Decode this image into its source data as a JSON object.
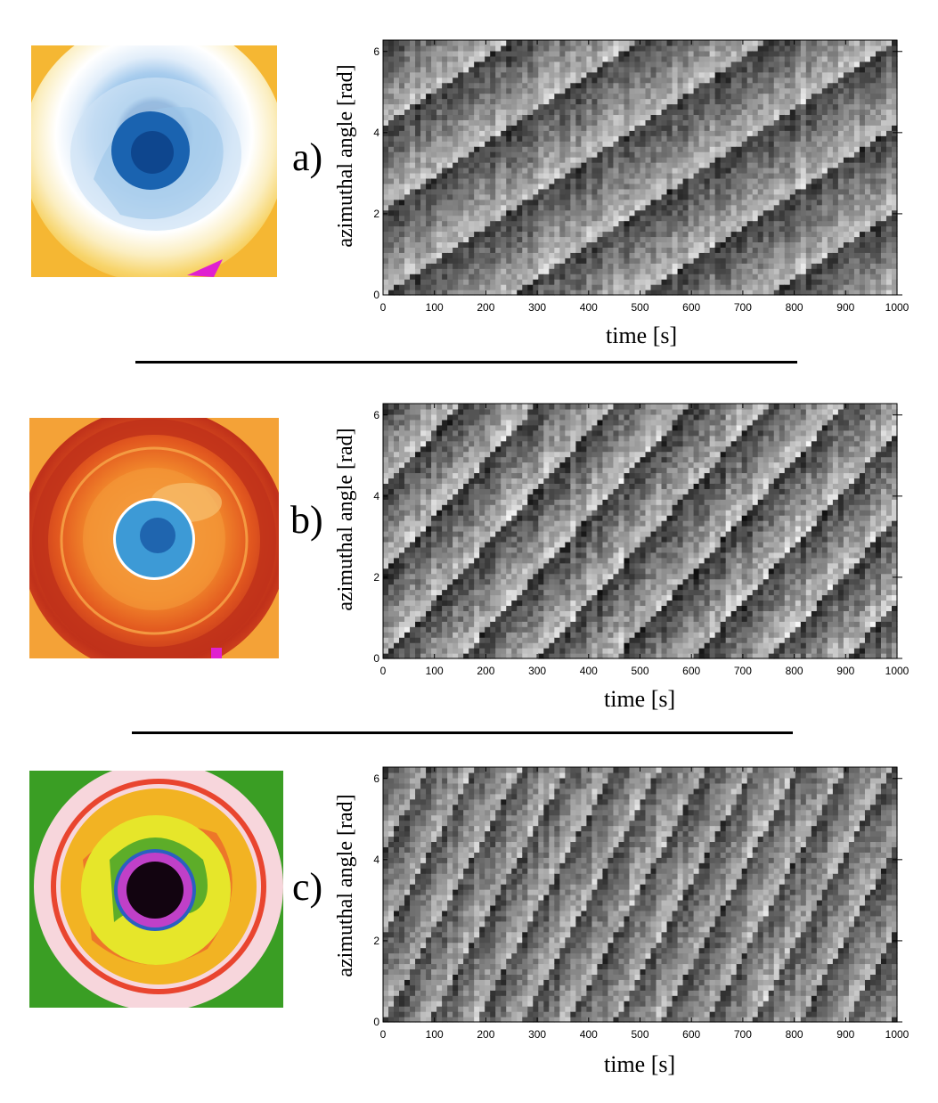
{
  "figure": {
    "separators": 2
  },
  "chart_data": [
    {
      "type": "heatmap",
      "panel_label": "a)",
      "xlabel": "time [s]",
      "ylabel": "azimuthal angle [rad]",
      "xlim": [
        0,
        1000
      ],
      "ylim": [
        0,
        6.28
      ],
      "x_ticks": [
        "0",
        "100",
        "200",
        "300",
        "400",
        "500",
        "600",
        "700",
        "800",
        "900",
        "1000"
      ],
      "y_ticks": [
        "0",
        "2",
        "4",
        "6"
      ],
      "colormap": "grayscale",
      "pattern": {
        "waves": 3,
        "period_s": 250,
        "contrast": 0.55,
        "noise": 0.22,
        "seed": 11
      },
      "thermal_image": {
        "palette": [
          "#f7d46a",
          "#fbeec0",
          "#ffffff",
          "#d8e9f7",
          "#7fb6e2",
          "#1a63b0",
          "#0b3f86"
        ],
        "background": "#f5b733",
        "accent": "#e020d0"
      }
    },
    {
      "type": "heatmap",
      "panel_label": "b)",
      "xlabel": "time [s]",
      "ylabel": "azimuthal angle [rad]",
      "xlim": [
        0,
        1000
      ],
      "ylim": [
        0,
        6.28
      ],
      "x_ticks": [
        "0",
        "100",
        "200",
        "300",
        "400",
        "500",
        "600",
        "700",
        "800",
        "900",
        "1000"
      ],
      "y_ticks": [
        "0",
        "2",
        "4",
        "6"
      ],
      "colormap": "grayscale",
      "pattern": {
        "waves": 3,
        "period_s": 150,
        "contrast": 0.6,
        "noise": 0.25,
        "seed": 23
      },
      "thermal_image": {
        "palette": [
          "#c0311a",
          "#e2581f",
          "#f28a2c",
          "#f7a94a",
          "#ffffff",
          "#3d9ad6",
          "#1553a2"
        ],
        "background": "#f4a237",
        "accent": "#e020d0"
      }
    },
    {
      "type": "heatmap",
      "panel_label": "c)",
      "xlabel": "time [s]",
      "ylabel": "azimuthal angle [rad]",
      "xlim": [
        0,
        1000
      ],
      "ylim": [
        0,
        6.28
      ],
      "x_ticks": [
        "0",
        "100",
        "200",
        "300",
        "400",
        "500",
        "600",
        "700",
        "800",
        "900",
        "1000"
      ],
      "y_ticks": [
        "0",
        "2",
        "4",
        "6"
      ],
      "colormap": "grayscale",
      "pattern": {
        "waves": 3,
        "period_s": 90,
        "contrast": 0.5,
        "noise": 0.22,
        "seed": 37
      },
      "thermal_image": {
        "palette": [
          "#2f9a2a",
          "#e6e62a",
          "#f2b323",
          "#e9452f",
          "#f7d6dc",
          "#c040c8",
          "#120410"
        ],
        "background": "#3a9e24",
        "accent": "#ffffff"
      }
    }
  ]
}
